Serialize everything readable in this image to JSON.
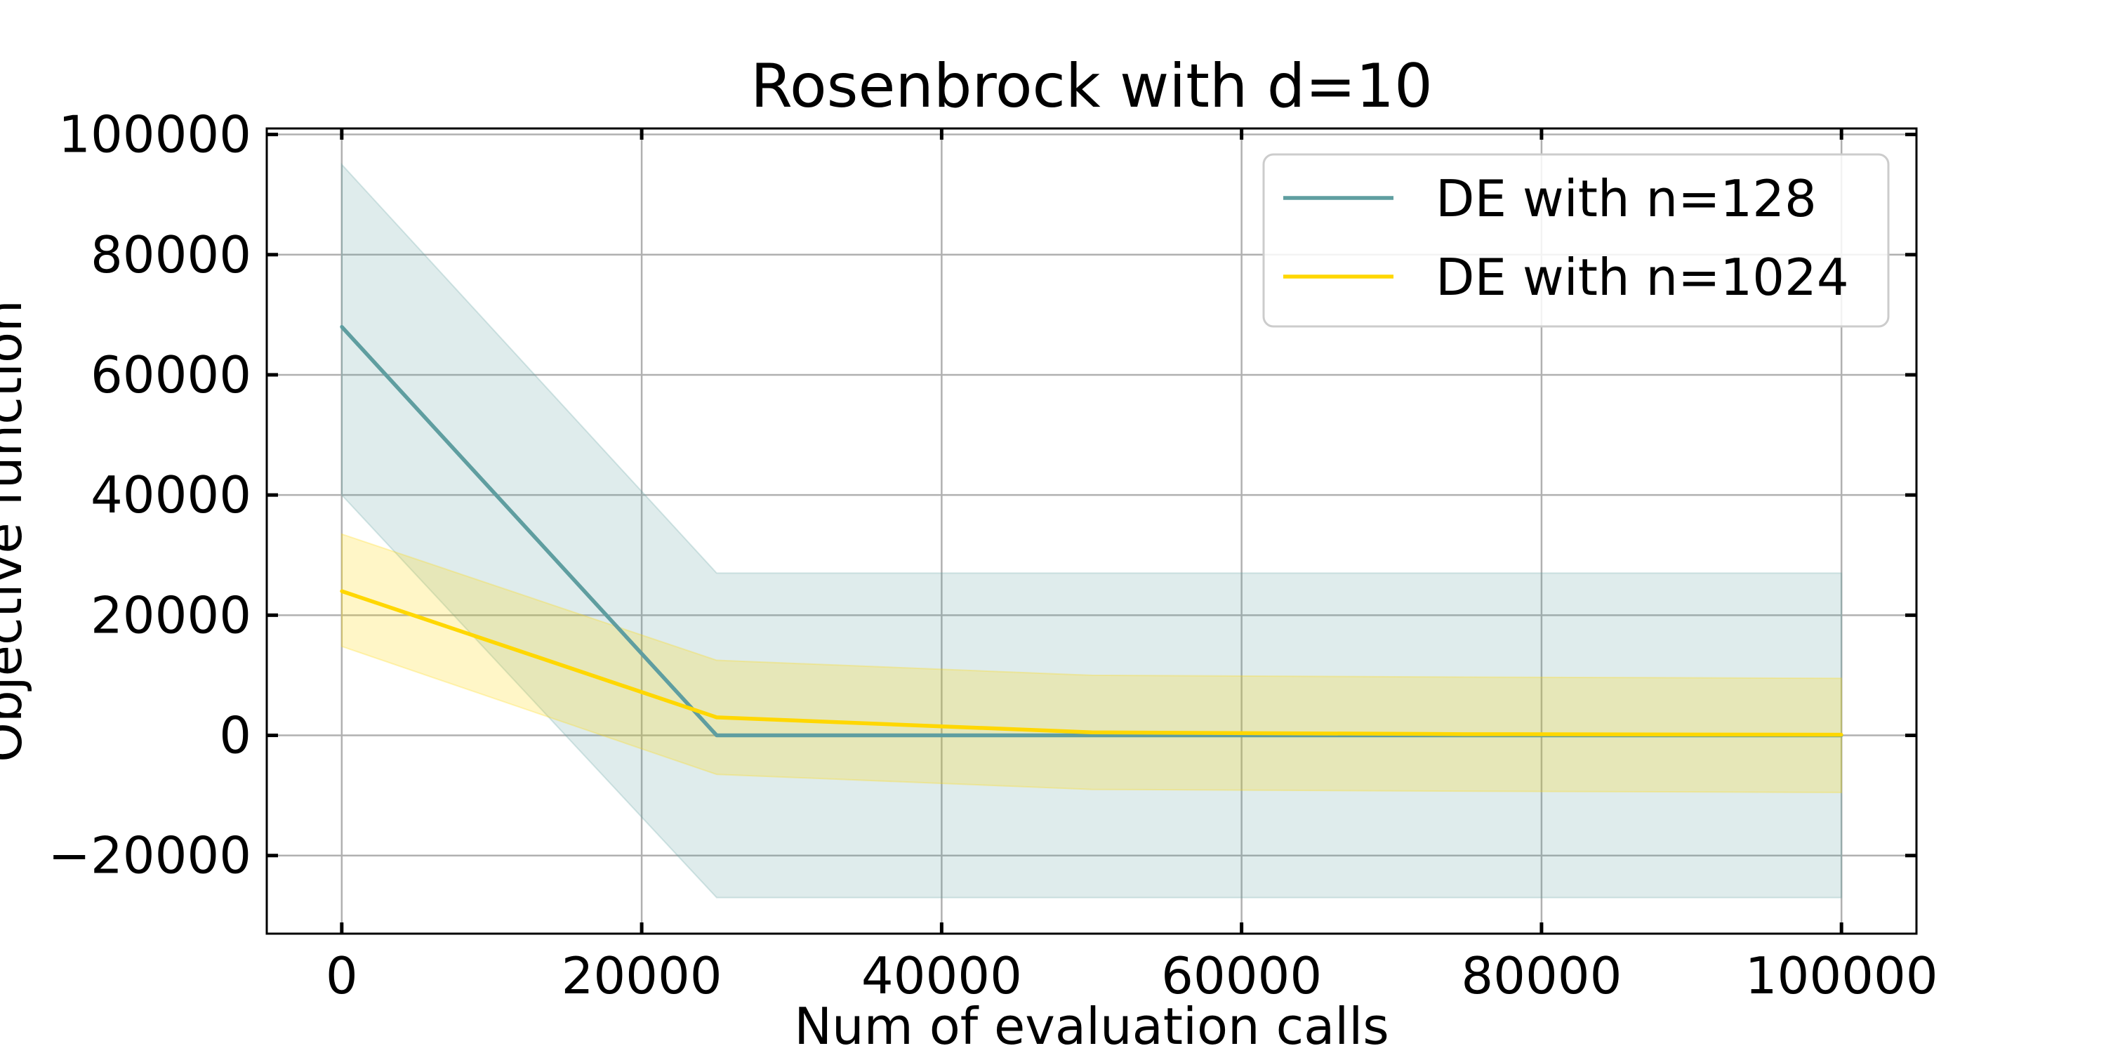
{
  "chart_data": {
    "type": "line",
    "title": "Rosenbrock with d=10",
    "xlabel": "Num of evaluation calls",
    "ylabel": "Objective function",
    "xlim": [
      -5000,
      105000
    ],
    "ylim": [
      -33000,
      101000
    ],
    "xticks": [
      0,
      20000,
      40000,
      60000,
      80000,
      100000
    ],
    "xtick_labels": [
      "0",
      "20000",
      "40000",
      "60000",
      "80000",
      "100000"
    ],
    "yticks": [
      -20000,
      0,
      20000,
      40000,
      60000,
      80000,
      100000
    ],
    "ytick_labels": [
      "−20000",
      "0",
      "20000",
      "40000",
      "60000",
      "80000",
      "100000"
    ],
    "grid": true,
    "legend_position": "top-right",
    "x": [
      0,
      25000,
      50000,
      75000,
      100000
    ],
    "series": [
      {
        "name": "DE with n=128",
        "color": "#5f9ea0",
        "values": [
          68000,
          0,
          0,
          0,
          0
        ],
        "upper": [
          95000,
          27000,
          27000,
          27000,
          27000
        ],
        "lower": [
          40000,
          -27000,
          -27000,
          -27000,
          -27000
        ]
      },
      {
        "name": "DE with n=1024",
        "color": "#ffd700",
        "values": [
          24000,
          3000,
          500,
          200,
          100
        ],
        "upper": [
          33500,
          12500,
          10000,
          9700,
          9500
        ],
        "lower": [
          14800,
          -6500,
          -9000,
          -9300,
          -9500
        ]
      }
    ]
  }
}
